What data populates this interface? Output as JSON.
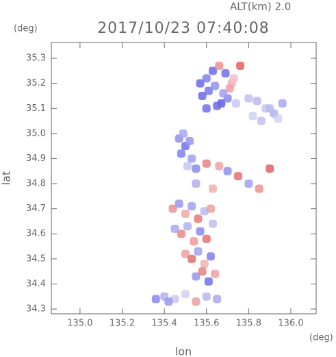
{
  "chart_data": {
    "type": "scatter",
    "title": "2017/10/23 07:40:08",
    "subtitle": "ALT(km) 2.0",
    "y_unit": "(deg)",
    "x_unit": "(deg)",
    "x_label": "lon",
    "y_label": "lat",
    "xlim": [
      134.864,
      136.12
    ],
    "ylim": [
      34.281,
      35.363
    ],
    "xticks": [
      {
        "value": 135.0,
        "label": "135.0"
      },
      135.2,
      135.4,
      135.6,
      135.8,
      {
        "value": 136.0,
        "label": "136.0"
      }
    ],
    "yticks": [
      34.3,
      34.4,
      34.5,
      34.6,
      34.7,
      34.8,
      34.9,
      {
        "value": 35.0,
        "label": "35.0"
      },
      35.1,
      35.2,
      35.3
    ],
    "x": [
      135.57,
      135.6,
      135.63,
      135.66,
      135.69,
      135.72,
      135.58,
      135.61,
      135.64,
      135.67,
      135.7,
      135.73,
      135.6,
      135.65,
      135.68,
      135.71,
      135.74,
      135.76,
      135.8,
      135.84,
      135.88,
      135.92,
      135.82,
      135.86,
      135.9,
      135.94,
      135.96,
      135.47,
      135.5,
      135.53,
      135.48,
      135.51,
      135.55,
      135.49,
      135.52,
      135.6,
      135.66,
      135.7,
      135.75,
      135.8,
      135.85,
      135.9,
      135.55,
      135.63,
      135.44,
      135.47,
      135.5,
      135.53,
      135.56,
      135.59,
      135.62,
      135.45,
      135.48,
      135.51,
      135.54,
      135.57,
      135.6,
      135.63,
      135.5,
      135.53,
      135.56,
      135.59,
      135.62,
      135.55,
      135.58,
      135.61,
      135.64,
      135.4,
      135.45,
      135.5,
      135.55,
      135.6,
      135.65,
      135.42,
      135.36
    ],
    "values": [
      35.2,
      35.22,
      35.25,
      35.27,
      35.24,
      35.2,
      35.15,
      35.17,
      35.19,
      35.12,
      35.14,
      35.22,
      35.1,
      35.11,
      35.16,
      35.18,
      35.12,
      35.27,
      35.14,
      35.13,
      35.1,
      35.08,
      35.07,
      35.05,
      35.1,
      35.06,
      35.12,
      34.98,
      34.95,
      34.9,
      34.92,
      34.87,
      34.86,
      35.0,
      34.97,
      34.88,
      34.87,
      34.85,
      34.83,
      34.8,
      34.78,
      34.86,
      34.8,
      34.78,
      34.7,
      34.72,
      34.68,
      34.71,
      34.66,
      34.69,
      34.7,
      34.62,
      34.6,
      34.63,
      34.57,
      34.61,
      34.58,
      34.64,
      34.52,
      34.5,
      34.53,
      34.48,
      34.51,
      34.43,
      34.45,
      34.41,
      34.44,
      34.35,
      34.34,
      34.36,
      34.33,
      34.35,
      34.34,
      34.33,
      34.34
    ],
    "colors": [
      "#6b6be8",
      "#8080f0",
      "#6b6be8",
      "#f09090",
      "#7070ee",
      "#f0b0b8",
      "#6b6be8",
      "#7878ee",
      "#9090f0",
      "#6060e6",
      "#8888f0",
      "#f4c0c8",
      "#7070ec",
      "#6b6be8",
      "#a0a0f2",
      "#f0a0a8",
      "#c8c8f2",
      "#e86060",
      "#c0c0f0",
      "#b8b8f0",
      "#c8c8f4",
      "#b0b0ee",
      "#d0d0f4",
      "#c0c0f0",
      "#b8b8f0",
      "#d0d0f6",
      "#a8a8f0",
      "#9090ee",
      "#7070ea",
      "#a0a0f0",
      "#8080ee",
      "#c8c8f2",
      "#8888ee",
      "#a8a8f0",
      "#9898ee",
      "#e88080",
      "#f0a0a8",
      "#9090ee",
      "#e87070",
      "#a0a0f0",
      "#f09090",
      "#e06060",
      "#b0b0ee",
      "#f0b0b0",
      "#e89090",
      "#9898ee",
      "#f0a8a8",
      "#a0a0f0",
      "#e87878",
      "#b8b8f2",
      "#f0a0a0",
      "#a8a8f0",
      "#e88888",
      "#b0b0f0",
      "#f09898",
      "#8888ee",
      "#e87070",
      "#c0c0f2",
      "#f0a0a0",
      "#e07070",
      "#a0a0ee",
      "#f0b0b0",
      "#8080ec",
      "#9898ee",
      "#e88080",
      "#7070ea",
      "#f0a0a0",
      "#b0b0ee",
      "#c8c8f2",
      "#d0d0f4",
      "#e8a0a0",
      "#b8b8f0",
      "#a8a8f0",
      "#9898ee",
      "#8888ee"
    ]
  }
}
